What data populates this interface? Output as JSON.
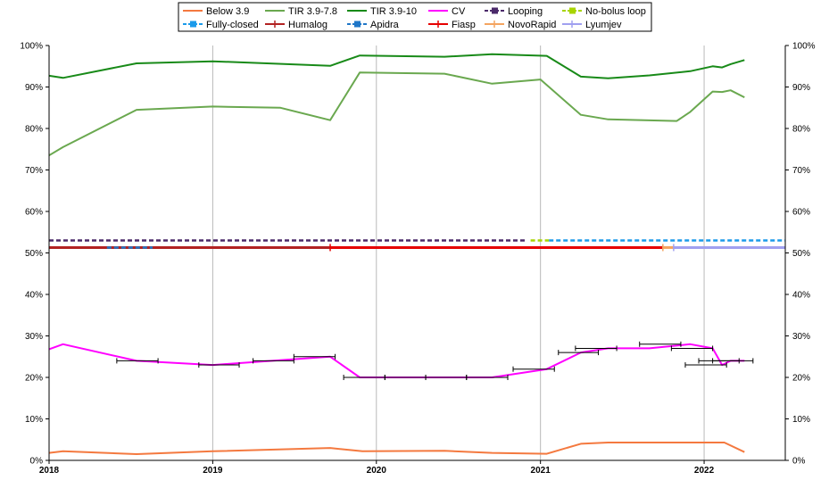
{
  "chart_data": {
    "type": "line",
    "title": "",
    "xlabel": "",
    "ylabel": "",
    "x_ticks": [
      "2018",
      "2019",
      "2020",
      "2021",
      "2022"
    ],
    "x_range": [
      "2018-01-01",
      "2022-07-01"
    ],
    "y_ticks": [
      "0%",
      "10%",
      "20%",
      "30%",
      "40%",
      "50%",
      "60%",
      "70%",
      "80%",
      "90%",
      "100%"
    ],
    "ylim": [
      0,
      100
    ],
    "y_axis_both_sides": true,
    "grid": "vertical at each year",
    "legend_position": "top-center",
    "series": [
      {
        "name": "Below 3.9",
        "kind": "line",
        "color": "#f4793f",
        "x": [
          "2018-01-01",
          "2018-02-01",
          "2018-07-15",
          "2019-01-01",
          "2019-09-20",
          "2019-12-01",
          "2020-06-01",
          "2020-09-15",
          "2021-01-15",
          "2021-04-01",
          "2021-06-01",
          "2021-12-01",
          "2022-02-15",
          "2022-04-01"
        ],
        "y": [
          1.8,
          2.2,
          1.5,
          2.2,
          3.0,
          2.2,
          2.3,
          1.8,
          1.6,
          4.0,
          4.3,
          4.3,
          4.3,
          2.0
        ]
      },
      {
        "name": "TIR 3.9-7.8",
        "kind": "line",
        "color": "#6aa84f",
        "x": [
          "2018-01-01",
          "2018-02-01",
          "2018-07-15",
          "2019-01-01",
          "2019-06-01",
          "2019-09-20",
          "2019-11-25",
          "2020-06-01",
          "2020-09-15",
          "2021-01-01",
          "2021-04-01",
          "2021-06-01",
          "2021-11-01",
          "2021-12-01",
          "2022-01-20",
          "2022-02-10",
          "2022-03-01",
          "2022-04-01"
        ],
        "y": [
          73.5,
          75.5,
          84.5,
          85.3,
          85.0,
          82.0,
          93.5,
          93.2,
          90.8,
          91.8,
          83.3,
          82.2,
          81.8,
          84.0,
          88.9,
          88.8,
          89.2,
          87.5
        ]
      },
      {
        "name": "TIR 3.9-10",
        "kind": "line",
        "color": "#188a18",
        "x": [
          "2018-01-01",
          "2018-02-01",
          "2018-07-15",
          "2019-01-01",
          "2019-09-20",
          "2019-11-25",
          "2020-06-01",
          "2020-09-15",
          "2021-01-15",
          "2021-04-01",
          "2021-06-01",
          "2021-09-01",
          "2021-12-01",
          "2022-01-20",
          "2022-02-10",
          "2022-03-01",
          "2022-04-01"
        ],
        "y": [
          92.7,
          92.2,
          95.7,
          96.2,
          95.1,
          97.6,
          97.3,
          97.9,
          97.5,
          92.5,
          92.1,
          92.8,
          93.8,
          95.0,
          94.7,
          95.5,
          96.5
        ]
      },
      {
        "name": "CV",
        "kind": "line",
        "color": "#ff00ff",
        "x": [
          "2018-01-01",
          "2018-02-01",
          "2018-07-15",
          "2019-01-01",
          "2019-09-20",
          "2019-11-25",
          "2020-06-01",
          "2020-09-15",
          "2021-01-15",
          "2021-04-01",
          "2021-06-01",
          "2021-09-01",
          "2021-12-01",
          "2022-01-20",
          "2022-02-10",
          "2022-03-01",
          "2022-04-01"
        ],
        "y": [
          26.8,
          28.0,
          24.0,
          23.0,
          25.0,
          20.0,
          20.0,
          20.0,
          22.0,
          26.0,
          27.0,
          27.0,
          28.0,
          27.0,
          23.0,
          24.0,
          24.0
        ]
      },
      {
        "name": "Looping",
        "kind": "period",
        "color": "#4b2a6a",
        "dash": true,
        "y": 53,
        "start": "2018-01-01",
        "end": "2020-12-01"
      },
      {
        "name": "No-bolus loop",
        "kind": "period",
        "color": "#a8d400",
        "dash": true,
        "y": 53,
        "start": "2020-12-10",
        "end": "2021-01-20"
      },
      {
        "name": "Fully-closed",
        "kind": "period",
        "color": "#1a9aea",
        "dash": true,
        "y": 53,
        "start": "2021-01-20",
        "end": "2022-07-01"
      },
      {
        "name": "Humalog",
        "kind": "period",
        "color": "#b22222",
        "dash": false,
        "y": 51.3,
        "start": "2018-01-01",
        "end": "2019-09-20"
      },
      {
        "name": "Apidra",
        "kind": "period",
        "color": "#1f77c8",
        "dash": true,
        "y": 51.3,
        "start": "2018-05-10",
        "end": "2018-08-20"
      },
      {
        "name": "Fiasp",
        "kind": "period",
        "color": "#e60000",
        "dash": false,
        "y": 51.3,
        "start": "2019-09-20",
        "end": "2021-10-01"
      },
      {
        "name": "NovoRapid",
        "kind": "period",
        "color": "#f4a460",
        "dash": false,
        "y": 51.3,
        "start": "2021-10-01",
        "end": "2021-10-25"
      },
      {
        "name": "Lyumjev",
        "kind": "period",
        "color": "#a0a0f0",
        "dash": false,
        "y": 51.3,
        "start": "2021-10-25",
        "end": "2022-07-01"
      }
    ],
    "cv_range_bars": {
      "color": "#000000",
      "segments": [
        {
          "start": "2018-06-01",
          "end": "2018-09-01",
          "y": 24
        },
        {
          "start": "2018-12-01",
          "end": "2019-03-01",
          "y": 23
        },
        {
          "start": "2019-04-01",
          "end": "2019-07-01",
          "y": 24
        },
        {
          "start": "2019-07-01",
          "end": "2019-10-01",
          "y": 25
        },
        {
          "start": "2019-10-20",
          "end": "2020-01-20",
          "y": 20
        },
        {
          "start": "2020-01-20",
          "end": "2020-04-20",
          "y": 20
        },
        {
          "start": "2020-04-20",
          "end": "2020-07-20",
          "y": 20
        },
        {
          "start": "2020-07-20",
          "end": "2020-10-20",
          "y": 20
        },
        {
          "start": "2020-11-01",
          "end": "2021-02-01",
          "y": 22
        },
        {
          "start": "2021-02-10",
          "end": "2021-05-10",
          "y": 26
        },
        {
          "start": "2021-03-20",
          "end": "2021-06-20",
          "y": 27
        },
        {
          "start": "2021-08-10",
          "end": "2021-11-10",
          "y": 28
        },
        {
          "start": "2021-10-20",
          "end": "2022-01-20",
          "y": 27
        },
        {
          "start": "2021-11-20",
          "end": "2022-02-20",
          "y": 23
        },
        {
          "start": "2021-12-20",
          "end": "2022-03-20",
          "y": 24
        },
        {
          "start": "2022-01-20",
          "end": "2022-04-20",
          "y": 24
        }
      ]
    }
  }
}
